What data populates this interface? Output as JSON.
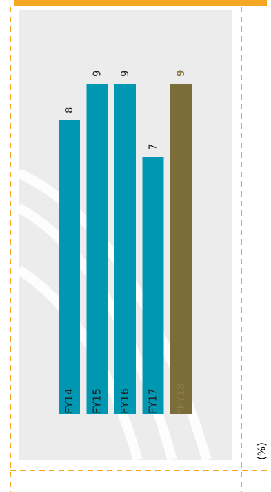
{
  "chart_data": {
    "type": "bar",
    "unit_label": "(%)",
    "categories": [
      "FY14",
      "FY15",
      "FY16",
      "FY17",
      "*FY18"
    ],
    "values": [
      8,
      9,
      9,
      7,
      9
    ],
    "colors": [
      "#0097b2",
      "#0097b2",
      "#0097b2",
      "#0097b2",
      "#7b6d3a"
    ],
    "label_colors": [
      "#222222",
      "#222222",
      "#222222",
      "#222222",
      "#8c7b45"
    ]
  }
}
